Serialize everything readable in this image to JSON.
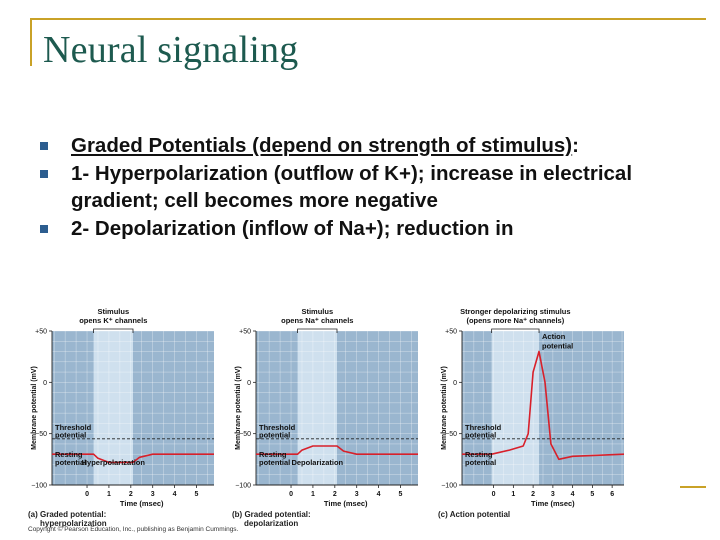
{
  "slide": {
    "title": "Neural signaling",
    "bullets": [
      {
        "underlined": "Graded Potentials (depend on strength of stimulus)",
        "rest": ":"
      },
      {
        "underlined": "",
        "rest": "1- Hyperpolarization (outflow of K+); increase in electrical gradient; cell becomes more negative"
      },
      {
        "underlined": "",
        "rest": "2- Depolarization (inflow of Na+); reduction in"
      }
    ],
    "accent_color": "#c9a227",
    "title_color": "#1d5a4f",
    "bullet_color": "#2c5d8f"
  },
  "figure": {
    "copyright": "Copyright © Pearson Education, Inc., publishing as Benjamin Cummings.",
    "panels": [
      {
        "stimulus_line1": "Stimulus",
        "stimulus_line2": "opens K⁺ channels",
        "caption_line1": "(a) Graded potential:",
        "caption_line2": "hyperpolarization",
        "threshold_label": "Threshold",
        "threshold_label2": "potential",
        "resting_label": "Resting",
        "resting_label2": "potential",
        "response_label": "Hyperpolarization",
        "response_label2": "",
        "ylabel": "Membrane potential (mV)",
        "xlabel": "Time (msec)"
      },
      {
        "stimulus_line1": "Stimulus",
        "stimulus_line2": "opens Na⁺ channels",
        "caption_line1": "(b) Graded potential:",
        "caption_line2": "depolarization",
        "threshold_label": "Threshold",
        "threshold_label2": "potential",
        "resting_label": "Resting",
        "resting_label2": "potential",
        "response_label": "Depolarization",
        "response_label2": "",
        "ylabel": "Membrane potential (mV)",
        "xlabel": "Time (msec)"
      },
      {
        "stimulus_line1": "Stronger depolarizing stimulus",
        "stimulus_line2": "(opens more Na⁺ channels)",
        "caption_line1": "(c) Action potential",
        "caption_line2": "",
        "threshold_label": "Threshold",
        "threshold_label2": "potential",
        "resting_label": "Resting",
        "resting_label2": "potential",
        "response_label": "Action",
        "response_label2": "potential",
        "ylabel": "Membrane potential (mV)",
        "xlabel": "Time (msec)"
      }
    ]
  },
  "chart_data": [
    {
      "type": "line",
      "xlabel": "Time (msec)",
      "ylabel": "Membrane potential (mV)",
      "x_ticks": [
        0,
        1,
        2,
        3,
        4,
        5
      ],
      "y_ticks": [
        "+50",
        "0",
        "−50",
        "−100"
      ],
      "ylim": [
        -100,
        50
      ],
      "xlim": [
        -1.6,
        5.8
      ],
      "threshold": -55,
      "stimulus_window": [
        0.3,
        2.1
      ],
      "series": [
        {
          "x": [
            -1.6,
            0.3,
            0.5,
            1.0,
            2.1,
            2.4,
            3.0,
            5.8
          ],
          "y": [
            -70,
            -70,
            -74,
            -78,
            -78,
            -73,
            -70,
            -70
          ]
        }
      ],
      "line_color": "#d8202a",
      "plot_bg": "#9ab6cf",
      "highlight_bg": "#cfe0ee",
      "grid": true
    },
    {
      "type": "line",
      "xlabel": "Time (msec)",
      "ylabel": "Membrane potential (mV)",
      "x_ticks": [
        0,
        1,
        2,
        3,
        4,
        5
      ],
      "y_ticks": [
        "+50",
        "0",
        "−50",
        "−100"
      ],
      "ylim": [
        -100,
        50
      ],
      "xlim": [
        -1.6,
        5.8
      ],
      "threshold": -55,
      "stimulus_window": [
        0.3,
        2.1
      ],
      "series": [
        {
          "x": [
            -1.6,
            0.3,
            0.5,
            1.0,
            2.1,
            2.4,
            3.0,
            5.8
          ],
          "y": [
            -70,
            -70,
            -66,
            -62,
            -62,
            -67,
            -70,
            -70
          ]
        }
      ],
      "line_color": "#d8202a",
      "plot_bg": "#9ab6cf",
      "highlight_bg": "#cfe0ee",
      "grid": true
    },
    {
      "type": "line",
      "xlabel": "Time (msec)",
      "ylabel": "Membrane potential (mV)",
      "x_ticks": [
        0,
        1,
        2,
        3,
        4,
        5,
        6
      ],
      "y_ticks": [
        "+50",
        "0",
        "−50",
        "−100"
      ],
      "ylim": [
        -100,
        50
      ],
      "xlim": [
        -1.6,
        6.6
      ],
      "threshold": -55,
      "stimulus_window": [
        -0.1,
        2.3
      ],
      "series": [
        {
          "x": [
            -1.6,
            -0.1,
            0.8,
            1.5,
            1.75,
            2.0,
            2.3,
            2.6,
            2.9,
            3.3,
            4.0,
            6.6
          ],
          "y": [
            -70,
            -70,
            -66,
            -62,
            -50,
            10,
            30,
            0,
            -60,
            -75,
            -72,
            -70
          ]
        }
      ],
      "line_color": "#d8202a",
      "plot_bg": "#9ab6cf",
      "highlight_bg": "#cfe0ee",
      "grid": true
    }
  ]
}
